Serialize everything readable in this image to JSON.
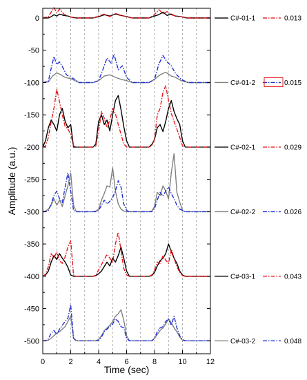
{
  "chart_data": {
    "type": "line",
    "xlabel": "Time (sec)",
    "ylabel": "Amplitude (a.u.)",
    "xlim": [
      0,
      12
    ],
    "ylim": [
      -520,
      15
    ],
    "x_ticks": [
      0,
      2,
      4,
      6,
      8,
      10,
      12
    ],
    "y_ticks": [
      0,
      -50,
      -100,
      -150,
      -200,
      -250,
      -300,
      -350,
      -400,
      -450,
      -500
    ],
    "vertical_guides": [
      1,
      2,
      3,
      4,
      5,
      6,
      7,
      8,
      9,
      10,
      11
    ],
    "grid": false,
    "colors": {
      "black": "#000000",
      "red": "#e8161b",
      "gray": "#808080",
      "blue": "#1f2fd6",
      "legend_box": "#e8161b"
    },
    "series": [
      {
        "name": "C#-01-1",
        "baseline": 0,
        "color": "#000000",
        "dash": "solid",
        "x": [
          0,
          0.4,
          0.6,
          0.8,
          1.0,
          1.2,
          1.5,
          1.8,
          2.1,
          2.4,
          3.6,
          4.0,
          4.4,
          4.8,
          5.2,
          5.6,
          6.0,
          6.4,
          7.6,
          8.0,
          8.3,
          8.6,
          8.9,
          9.2,
          9.5,
          9.9,
          10.3,
          12
        ],
        "y": [
          0,
          0,
          2,
          5,
          3,
          6,
          4,
          3,
          1,
          0,
          0,
          2,
          5,
          3,
          6,
          4,
          2,
          0,
          0,
          3,
          5,
          9,
          4,
          6,
          3,
          2,
          0,
          0
        ]
      },
      {
        "name": "0.013",
        "baseline": 0,
        "color": "#e8161b",
        "dash": "dashdot",
        "x": [
          0,
          0.4,
          0.6,
          0.8,
          1.0,
          1.2,
          1.5,
          1.8,
          2.1,
          2.4,
          3.6,
          4.0,
          4.4,
          4.8,
          5.2,
          5.6,
          6.0,
          6.4,
          7.6,
          8.0,
          8.3,
          8.6,
          8.9,
          9.2,
          9.5,
          9.9,
          10.3,
          12
        ],
        "y": [
          0,
          2,
          9,
          16,
          8,
          14,
          6,
          3,
          1,
          0,
          0,
          3,
          6,
          2,
          7,
          4,
          2,
          0,
          0,
          5,
          13,
          7,
          10,
          5,
          3,
          2,
          0,
          0
        ]
      },
      {
        "name": "C#-01-2",
        "baseline": -100,
        "color": "#808080",
        "dash": "solid",
        "x": [
          0,
          0.4,
          0.7,
          1.0,
          1.3,
          1.6,
          2.0,
          2.3,
          2.6,
          3.6,
          4.0,
          4.4,
          4.8,
          5.2,
          5.6,
          6.0,
          6.4,
          7.6,
          8.0,
          8.4,
          8.8,
          9.2,
          9.5,
          9.9,
          10.4,
          12
        ],
        "y": [
          -100,
          -99,
          -90,
          -85,
          -88,
          -92,
          -94,
          -97,
          -100,
          -100,
          -97,
          -90,
          -88,
          -92,
          -95,
          -97,
          -100,
          -100,
          -95,
          -88,
          -84,
          -90,
          -92,
          -97,
          -100,
          -100
        ]
      },
      {
        "name": "0.015",
        "baseline": -100,
        "color": "#1f2fd6",
        "dash": "dashdot",
        "x": [
          0,
          0.4,
          0.6,
          0.8,
          1.0,
          1.2,
          1.4,
          1.7,
          2.0,
          2.3,
          2.6,
          3.6,
          4.0,
          4.3,
          4.6,
          4.9,
          5.1,
          5.4,
          5.7,
          6.0,
          6.4,
          7.6,
          8.0,
          8.3,
          8.6,
          8.9,
          9.2,
          9.5,
          9.9,
          10.4,
          12
        ],
        "y": [
          -100,
          -98,
          -78,
          -60,
          -72,
          -68,
          -75,
          -88,
          -92,
          -95,
          -100,
          -100,
          -97,
          -80,
          -62,
          -70,
          -56,
          -80,
          -74,
          -92,
          -100,
          -100,
          -95,
          -72,
          -58,
          -68,
          -74,
          -86,
          -95,
          -100,
          -100
        ]
      },
      {
        "name": "C#-02-1",
        "baseline": -200,
        "color": "#000000",
        "dash": "solid",
        "x": [
          0,
          0.2,
          0.4,
          0.6,
          0.8,
          1.0,
          1.2,
          1.4,
          1.6,
          1.8,
          2.0,
          2.2,
          2.4,
          3.6,
          3.8,
          4.0,
          4.2,
          4.4,
          4.6,
          4.8,
          5.0,
          5.2,
          5.4,
          5.6,
          5.8,
          6.0,
          6.2,
          6.4,
          7.6,
          7.8,
          8.0,
          8.2,
          8.4,
          8.6,
          8.8,
          9.0,
          9.2,
          9.4,
          9.6,
          9.8,
          10.0,
          10.2,
          10.4,
          12
        ],
        "y": [
          -200,
          -190,
          -170,
          -158,
          -165,
          -175,
          -150,
          -140,
          -160,
          -170,
          -165,
          -200,
          -200,
          -200,
          -195,
          -160,
          -150,
          -165,
          -158,
          -175,
          -150,
          -128,
          -120,
          -142,
          -168,
          -190,
          -200,
          -200,
          -200,
          -196,
          -188,
          -170,
          -165,
          -176,
          -160,
          -140,
          -128,
          -145,
          -156,
          -165,
          -190,
          -200,
          -200,
          -200
        ]
      },
      {
        "name": "0.029",
        "baseline": -200,
        "color": "#e8161b",
        "dash": "dashdot",
        "x": [
          0,
          0.2,
          0.4,
          0.6,
          0.8,
          1.0,
          1.2,
          1.4,
          1.6,
          1.8,
          2.0,
          2.2,
          2.4,
          3.6,
          3.8,
          4.0,
          4.2,
          4.4,
          4.6,
          4.8,
          5.0,
          5.2,
          5.4,
          5.6,
          5.8,
          6.0,
          6.2,
          6.4,
          7.6,
          7.8,
          8.0,
          8.2,
          8.4,
          8.6,
          8.8,
          9.0,
          9.2,
          9.4,
          9.6,
          9.8,
          10.0,
          10.2,
          10.4,
          12
        ],
        "y": [
          -200,
          -198,
          -185,
          -160,
          -140,
          -110,
          -130,
          -150,
          -168,
          -172,
          -180,
          -198,
          -200,
          -200,
          -198,
          -175,
          -145,
          -155,
          -170,
          -158,
          -140,
          -148,
          -165,
          -180,
          -195,
          -200,
          -200,
          -200,
          -200,
          -198,
          -188,
          -150,
          -140,
          -115,
          -105,
          -128,
          -148,
          -160,
          -172,
          -185,
          -198,
          -200,
          -200,
          -200
        ]
      },
      {
        "name": "C#-02-2",
        "baseline": -300,
        "color": "#808080",
        "dash": "solid",
        "x": [
          0,
          0.2,
          0.4,
          0.6,
          0.8,
          1.0,
          1.2,
          1.4,
          1.6,
          1.8,
          2.0,
          2.2,
          2.4,
          3.6,
          3.8,
          4.0,
          4.2,
          4.4,
          4.6,
          4.8,
          5.0,
          5.2,
          5.4,
          5.6,
          5.8,
          6.0,
          6.2,
          6.4,
          7.6,
          7.8,
          8.0,
          8.2,
          8.4,
          8.6,
          8.8,
          9.0,
          9.2,
          9.4,
          9.6,
          9.8,
          10.0,
          10.2,
          10.4,
          12
        ],
        "y": [
          -300,
          -299,
          -296,
          -290,
          -280,
          -290,
          -282,
          -292,
          -275,
          -260,
          -240,
          -290,
          -300,
          -300,
          -299,
          -296,
          -282,
          -272,
          -260,
          -262,
          -232,
          -268,
          -288,
          -296,
          -299,
          -300,
          -300,
          -300,
          -300,
          -299,
          -292,
          -270,
          -275,
          -260,
          -268,
          -280,
          -240,
          -210,
          -270,
          -285,
          -298,
          -300,
          -300,
          -300
        ]
      },
      {
        "name": "0.026",
        "baseline": -300,
        "color": "#1f2fd6",
        "dash": "dashdot",
        "x": [
          0,
          0.2,
          0.4,
          0.6,
          0.8,
          1.0,
          1.2,
          1.4,
          1.6,
          1.8,
          2.0,
          2.2,
          2.4,
          3.6,
          3.8,
          4.0,
          4.2,
          4.4,
          4.6,
          4.8,
          5.0,
          5.2,
          5.4,
          5.6,
          5.8,
          6.0,
          6.2,
          6.4,
          7.6,
          7.8,
          8.0,
          8.2,
          8.4,
          8.6,
          8.8,
          9.0,
          9.2,
          9.4,
          9.6,
          9.8,
          10.0,
          10.2,
          10.4,
          12
        ],
        "y": [
          -300,
          -300,
          -298,
          -288,
          -275,
          -268,
          -280,
          -286,
          -262,
          -240,
          -268,
          -298,
          -300,
          -300,
          -300,
          -298,
          -290,
          -282,
          -288,
          -284,
          -278,
          -268,
          -252,
          -262,
          -288,
          -298,
          -300,
          -300,
          -300,
          -300,
          -295,
          -282,
          -270,
          -276,
          -268,
          -262,
          -272,
          -280,
          -290,
          -296,
          -298,
          -300,
          -300,
          -300
        ]
      },
      {
        "name": "C#-03-1",
        "baseline": -400,
        "color": "#000000",
        "dash": "solid",
        "x": [
          0,
          0.2,
          0.4,
          0.6,
          0.8,
          1.0,
          1.2,
          1.4,
          1.6,
          1.8,
          2.0,
          2.2,
          2.4,
          3.6,
          3.8,
          4.0,
          4.2,
          4.4,
          4.6,
          4.8,
          5.0,
          5.2,
          5.4,
          5.6,
          5.8,
          6.0,
          6.2,
          6.4,
          7.6,
          7.8,
          8.0,
          8.2,
          8.4,
          8.6,
          8.8,
          9.0,
          9.2,
          9.4,
          9.6,
          9.8,
          10.0,
          10.2,
          10.4,
          12
        ],
        "y": [
          -400,
          -398,
          -392,
          -378,
          -368,
          -374,
          -365,
          -372,
          -378,
          -386,
          -398,
          -400,
          -400,
          -400,
          -399,
          -396,
          -392,
          -385,
          -378,
          -384,
          -372,
          -378,
          -368,
          -355,
          -372,
          -392,
          -400,
          -400,
          -400,
          -399,
          -394,
          -384,
          -376,
          -372,
          -365,
          -350,
          -362,
          -372,
          -380,
          -392,
          -398,
          -400,
          -400,
          -400
        ]
      },
      {
        "name": "0.043",
        "baseline": -400,
        "color": "#e8161b",
        "dash": "dashdot",
        "x": [
          0,
          0.2,
          0.4,
          0.6,
          0.8,
          1.0,
          1.2,
          1.4,
          1.6,
          1.8,
          2.0,
          2.2,
          2.4,
          3.6,
          3.8,
          4.0,
          4.2,
          4.4,
          4.6,
          4.8,
          5.0,
          5.2,
          5.4,
          5.6,
          5.8,
          6.0,
          6.2,
          6.4,
          7.6,
          7.8,
          8.0,
          8.2,
          8.4,
          8.6,
          8.8,
          9.0,
          9.2,
          9.4,
          9.6,
          9.8,
          10.0,
          10.2,
          10.4,
          12
        ],
        "y": [
          -400,
          -397,
          -385,
          -365,
          -372,
          -362,
          -376,
          -380,
          -370,
          -355,
          -345,
          -398,
          -400,
          -400,
          -398,
          -390,
          -382,
          -374,
          -366,
          -372,
          -378,
          -350,
          -332,
          -360,
          -388,
          -398,
          -400,
          -400,
          -400,
          -398,
          -390,
          -378,
          -380,
          -368,
          -375,
          -380,
          -358,
          -372,
          -385,
          -394,
          -399,
          -400,
          -400,
          -400
        ]
      },
      {
        "name": "C#-03-2",
        "baseline": -500,
        "color": "#808080",
        "dash": "solid",
        "x": [
          0,
          0.2,
          0.4,
          0.6,
          0.8,
          1.0,
          1.2,
          1.4,
          1.6,
          1.8,
          2.0,
          2.2,
          2.4,
          3.6,
          3.8,
          4.0,
          4.2,
          4.4,
          4.6,
          4.8,
          5.0,
          5.2,
          5.4,
          5.6,
          5.8,
          6.0,
          6.2,
          6.4,
          7.6,
          7.8,
          8.0,
          8.2,
          8.4,
          8.6,
          8.8,
          9.0,
          9.2,
          9.4,
          9.6,
          9.8,
          10.0,
          10.2,
          10.4,
          12
        ],
        "y": [
          -500,
          -500,
          -499,
          -496,
          -492,
          -488,
          -486,
          -482,
          -478,
          -470,
          -462,
          -496,
          -500,
          -500,
          -500,
          -498,
          -492,
          -484,
          -480,
          -476,
          -470,
          -462,
          -458,
          -452,
          -468,
          -492,
          -500,
          -500,
          -500,
          -500,
          -496,
          -490,
          -484,
          -480,
          -474,
          -466,
          -472,
          -480,
          -486,
          -494,
          -499,
          -500,
          -500,
          -500
        ]
      },
      {
        "name": "0.048",
        "baseline": -500,
        "color": "#1f2fd6",
        "dash": "dashdot",
        "x": [
          0,
          0.2,
          0.4,
          0.6,
          0.8,
          1.0,
          1.2,
          1.4,
          1.6,
          1.8,
          2.0,
          2.2,
          2.4,
          3.6,
          3.8,
          4.0,
          4.2,
          4.4,
          4.6,
          4.8,
          5.0,
          5.2,
          5.4,
          5.6,
          5.8,
          6.0,
          6.2,
          6.4,
          7.6,
          7.8,
          8.0,
          8.2,
          8.4,
          8.6,
          8.8,
          9.0,
          9.2,
          9.4,
          9.6,
          9.8,
          10.0,
          10.2,
          10.4,
          12
        ],
        "y": [
          -500,
          -500,
          -497,
          -488,
          -484,
          -490,
          -482,
          -476,
          -470,
          -465,
          -444,
          -496,
          -500,
          -500,
          -500,
          -499,
          -494,
          -486,
          -482,
          -478,
          -474,
          -466,
          -470,
          -478,
          -480,
          -496,
          -500,
          -500,
          -500,
          -500,
          -496,
          -486,
          -480,
          -478,
          -470,
          -466,
          -476,
          -462,
          -480,
          -492,
          -498,
          -500,
          -500,
          -500
        ]
      }
    ],
    "legend": [
      {
        "label": "C#-01-1",
        "series": "C#-01-1",
        "row": 0
      },
      {
        "label": "0.013",
        "series": "0.013",
        "row": 0
      },
      {
        "label": "C#-01-2",
        "series": "C#-01-2",
        "row": 1
      },
      {
        "label": "0.015",
        "series": "0.015",
        "row": 1,
        "boxed": true
      },
      {
        "label": "C#-02-1",
        "series": "C#-02-1",
        "row": 2
      },
      {
        "label": "0.029",
        "series": "0.029",
        "row": 2
      },
      {
        "label": "C#-02-2",
        "series": "C#-02-2",
        "row": 3
      },
      {
        "label": "0.026",
        "series": "0.026",
        "row": 3
      },
      {
        "label": "C#-03-1",
        "series": "C#-03-1",
        "row": 4
      },
      {
        "label": "0.043",
        "series": "0.043",
        "row": 4
      },
      {
        "label": "C#-03-2",
        "series": "C#-03-2",
        "row": 5
      },
      {
        "label": "0.048",
        "series": "0.048",
        "row": 5
      }
    ]
  }
}
